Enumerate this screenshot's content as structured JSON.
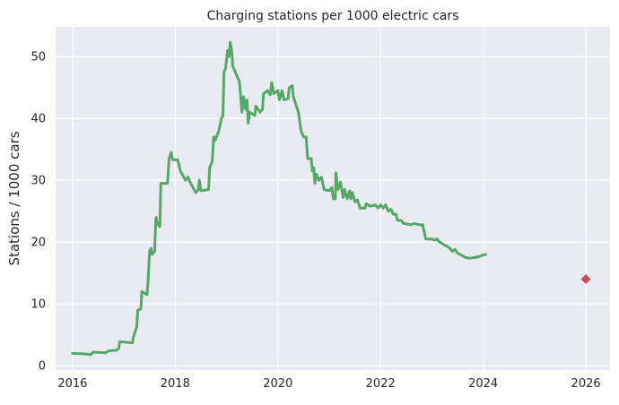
{
  "chart_data": {
    "type": "line",
    "title": "Charging stations per 1000 electric cars",
    "xlabel": "",
    "ylabel": "Stations / 1000 cars",
    "xlim": [
      2015.67,
      2026.47
    ],
    "ylim": [
      -0.7,
      54.8
    ],
    "x_ticks": [
      2016,
      2018,
      2020,
      2022,
      2024,
      2026
    ],
    "y_ticks": [
      0,
      10,
      20,
      30,
      40,
      50
    ],
    "grid": true,
    "legend": "none",
    "series": [
      {
        "color": "#55a868",
        "points": [
          [
            2016.0,
            2.0
          ],
          [
            2016.25,
            1.9
          ],
          [
            2016.35,
            1.8
          ],
          [
            2016.4,
            2.2
          ],
          [
            2016.65,
            2.1
          ],
          [
            2016.7,
            2.4
          ],
          [
            2016.85,
            2.5
          ],
          [
            2016.9,
            2.8
          ],
          [
            2016.92,
            3.9
          ],
          [
            2017.05,
            3.8
          ],
          [
            2017.17,
            3.7
          ],
          [
            2017.18,
            4.5
          ],
          [
            2017.22,
            5.5
          ],
          [
            2017.25,
            6.3
          ],
          [
            2017.27,
            9.0
          ],
          [
            2017.33,
            9.2
          ],
          [
            2017.35,
            12.0
          ],
          [
            2017.45,
            11.5
          ],
          [
            2017.47,
            13.5
          ],
          [
            2017.5,
            18.5
          ],
          [
            2017.53,
            19.0
          ],
          [
            2017.55,
            18.0
          ],
          [
            2017.6,
            18.5
          ],
          [
            2017.62,
            23.5
          ],
          [
            2017.63,
            24.0
          ],
          [
            2017.65,
            23.0
          ],
          [
            2017.7,
            22.5
          ],
          [
            2017.72,
            29.5
          ],
          [
            2017.85,
            29.5
          ],
          [
            2017.88,
            33.5
          ],
          [
            2017.92,
            34.5
          ],
          [
            2017.95,
            33.3
          ],
          [
            2018.05,
            33.3
          ],
          [
            2018.1,
            31.5
          ],
          [
            2018.2,
            30.0
          ],
          [
            2018.25,
            30.5
          ],
          [
            2018.3,
            29.5
          ],
          [
            2018.4,
            28.0
          ],
          [
            2018.45,
            28.5
          ],
          [
            2018.47,
            30.0
          ],
          [
            2018.5,
            28.3
          ],
          [
            2018.65,
            28.5
          ],
          [
            2018.67,
            32.0
          ],
          [
            2018.72,
            33.0
          ],
          [
            2018.75,
            37.0
          ],
          [
            2018.78,
            36.5
          ],
          [
            2018.85,
            38.0
          ],
          [
            2018.9,
            40.0
          ],
          [
            2018.93,
            40.5
          ],
          [
            2018.95,
            47.5
          ],
          [
            2018.98,
            48.0
          ],
          [
            2019.02,
            51.0
          ],
          [
            2019.05,
            50.0
          ],
          [
            2019.07,
            52.3
          ],
          [
            2019.1,
            51.0
          ],
          [
            2019.12,
            48.5
          ],
          [
            2019.17,
            47.5
          ],
          [
            2019.22,
            46.5
          ],
          [
            2019.25,
            46.0
          ],
          [
            2019.3,
            41.0
          ],
          [
            2019.33,
            43.5
          ],
          [
            2019.37,
            41.5
          ],
          [
            2019.4,
            43.0
          ],
          [
            2019.42,
            39.2
          ],
          [
            2019.45,
            41.0
          ],
          [
            2019.55,
            40.5
          ],
          [
            2019.57,
            42.0
          ],
          [
            2019.65,
            41.0
          ],
          [
            2019.7,
            41.5
          ],
          [
            2019.72,
            44.0
          ],
          [
            2019.8,
            44.5
          ],
          [
            2019.85,
            43.8
          ],
          [
            2019.88,
            45.8
          ],
          [
            2019.92,
            44.0
          ],
          [
            2020.0,
            44.5
          ],
          [
            2020.03,
            43.0
          ],
          [
            2020.08,
            44.5
          ],
          [
            2020.12,
            43.0
          ],
          [
            2020.2,
            43.2
          ],
          [
            2020.22,
            45.0
          ],
          [
            2020.28,
            45.3
          ],
          [
            2020.3,
            43.5
          ],
          [
            2020.4,
            41.0
          ],
          [
            2020.45,
            38.0
          ],
          [
            2020.5,
            37.0
          ],
          [
            2020.55,
            37.0
          ],
          [
            2020.58,
            33.5
          ],
          [
            2020.65,
            33.5
          ],
          [
            2020.67,
            31.5
          ],
          [
            2020.7,
            32.0
          ],
          [
            2020.72,
            29.5
          ],
          [
            2020.75,
            31.0
          ],
          [
            2020.8,
            30.0
          ],
          [
            2020.85,
            30.5
          ],
          [
            2020.9,
            28.5
          ],
          [
            2021.0,
            28.3
          ],
          [
            2021.05,
            28.8
          ],
          [
            2021.08,
            27.0
          ],
          [
            2021.12,
            27.0
          ],
          [
            2021.13,
            31.2
          ],
          [
            2021.17,
            28.5
          ],
          [
            2021.22,
            29.7
          ],
          [
            2021.27,
            27.2
          ],
          [
            2021.3,
            28.5
          ],
          [
            2021.35,
            27.0
          ],
          [
            2021.4,
            28.3
          ],
          [
            2021.42,
            27.0
          ],
          [
            2021.45,
            28.0
          ],
          [
            2021.5,
            26.5
          ],
          [
            2021.55,
            26.8
          ],
          [
            2021.6,
            25.5
          ],
          [
            2021.7,
            25.5
          ],
          [
            2021.72,
            26.2
          ],
          [
            2021.8,
            25.8
          ],
          [
            2021.9,
            26.0
          ],
          [
            2021.95,
            25.5
          ],
          [
            2022.0,
            26.0
          ],
          [
            2022.05,
            25.5
          ],
          [
            2022.1,
            26.0
          ],
          [
            2022.15,
            25.0
          ],
          [
            2022.2,
            25.3
          ],
          [
            2022.25,
            24.5
          ],
          [
            2022.3,
            24.5
          ],
          [
            2022.33,
            23.5
          ],
          [
            2022.4,
            23.5
          ],
          [
            2022.45,
            23.0
          ],
          [
            2022.6,
            22.8
          ],
          [
            2022.65,
            23.0
          ],
          [
            2022.75,
            22.8
          ],
          [
            2022.82,
            22.8
          ],
          [
            2022.88,
            20.5
          ],
          [
            2023.0,
            20.5
          ],
          [
            2023.05,
            20.3
          ],
          [
            2023.1,
            20.5
          ],
          [
            2023.15,
            20.0
          ],
          [
            2023.25,
            19.5
          ],
          [
            2023.3,
            19.3
          ],
          [
            2023.35,
            19.0
          ],
          [
            2023.4,
            18.5
          ],
          [
            2023.45,
            18.8
          ],
          [
            2023.5,
            18.2
          ],
          [
            2023.55,
            18.0
          ],
          [
            2023.65,
            17.5
          ],
          [
            2023.75,
            17.4
          ],
          [
            2023.9,
            17.6
          ],
          [
            2024.0,
            17.9
          ],
          [
            2024.05,
            18.0
          ]
        ]
      }
    ],
    "marker": {
      "x": 2026.0,
      "y": 14.0,
      "shape": "diamond",
      "color": "#c44e52"
    },
    "colors": {
      "plot_background": "#eaeaf2",
      "grid": "#ffffff",
      "text": "#262626"
    }
  }
}
